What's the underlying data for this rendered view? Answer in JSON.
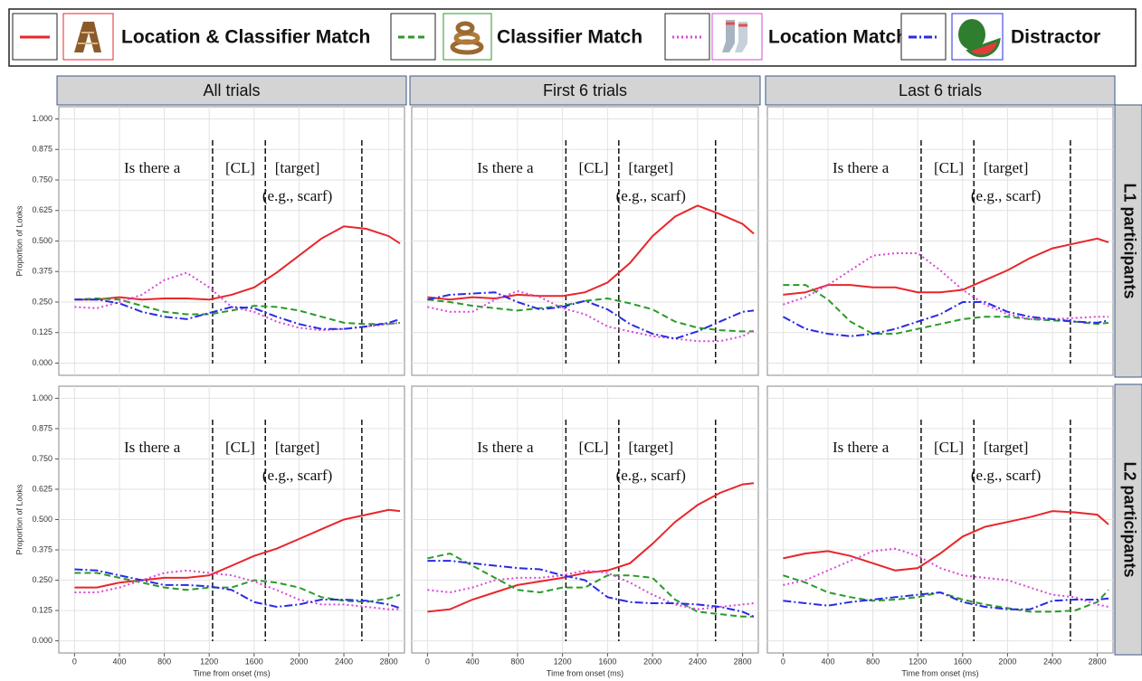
{
  "column_titles": [
    "All trials",
    "First 6 trials",
    "Last 6 trials"
  ],
  "row_titles": [
    "L1 participants",
    "L2 participants"
  ],
  "chart_data": [
    {
      "type": "line",
      "grid": true,
      "ylabel": "Proportion of Looks",
      "ytick_labels": true,
      "xtick_labels": false,
      "x": [
        0,
        200,
        400,
        600,
        800,
        1000,
        1200,
        1400,
        1600,
        1800,
        2000,
        2200,
        2400,
        2600,
        2800,
        2900
      ],
      "xlim": [
        -140,
        2940
      ],
      "xticks": [
        0,
        400,
        800,
        1200,
        1600,
        2000,
        2400,
        2800
      ],
      "ylim": [
        -0.05,
        1.05
      ],
      "yticks": [
        {
          "value": 0,
          "label": "0.000"
        },
        0.125,
        {
          "value": 0.25,
          "label": "0.250"
        },
        0.375,
        {
          "value": 0.5,
          "label": "0.500"
        },
        0.625,
        {
          "value": 0.75,
          "label": "0.750"
        },
        0.875,
        {
          "value": 1,
          "label": "1.000"
        }
      ],
      "vlines": [
        1230,
        1700,
        2560
      ],
      "annotations": [
        "Is there a",
        "[CL]",
        "[target]",
        "(e.g., scarf)"
      ],
      "series": [
        {
          "name": "Location & Classifier Match",
          "color": "#e8262a",
          "style": "solid",
          "values": [
            0.26,
            0.26,
            0.27,
            0.26,
            0.265,
            0.265,
            0.26,
            0.28,
            0.31,
            0.37,
            0.44,
            0.51,
            0.56,
            0.55,
            0.52,
            0.49
          ]
        },
        {
          "name": "Classifier Match",
          "color": "#2a9a2a",
          "style": "dashed",
          "values": [
            0.26,
            0.265,
            0.26,
            0.235,
            0.21,
            0.2,
            0.2,
            0.215,
            0.235,
            0.23,
            0.215,
            0.19,
            0.165,
            0.16,
            0.16,
            0.165
          ]
        },
        {
          "name": "Location Match",
          "color": "#d946d9",
          "style": "dotted",
          "values": [
            0.23,
            0.225,
            0.25,
            0.28,
            0.34,
            0.37,
            0.31,
            0.23,
            0.21,
            0.17,
            0.145,
            0.135,
            0.14,
            0.15,
            0.16,
            0.165
          ]
        },
        {
          "name": "Distractor",
          "color": "#2a2ae6",
          "style": "dashdot",
          "values": [
            0.26,
            0.26,
            0.245,
            0.21,
            0.19,
            0.18,
            0.205,
            0.23,
            0.225,
            0.19,
            0.16,
            0.14,
            0.14,
            0.15,
            0.165,
            0.18
          ]
        }
      ]
    },
    {
      "type": "line",
      "grid": true,
      "ytick_labels": false,
      "xtick_labels": false,
      "x": [
        0,
        200,
        400,
        600,
        800,
        1000,
        1200,
        1400,
        1600,
        1800,
        2000,
        2200,
        2400,
        2600,
        2800,
        2900
      ],
      "xlim": [
        -140,
        2940
      ],
      "xticks": [
        0,
        400,
        800,
        1200,
        1600,
        2000,
        2400,
        2800
      ],
      "ylim": [
        -0.05,
        1.05
      ],
      "yticks": [
        {
          "value": 0,
          "label": "0.000"
        },
        0.125,
        {
          "value": 0.25,
          "label": "0.250"
        },
        0.375,
        {
          "value": 0.5,
          "label": "0.500"
        },
        0.625,
        {
          "value": 0.75,
          "label": "0.750"
        },
        0.875,
        {
          "value": 1,
          "label": "1.000"
        }
      ],
      "vlines": [
        1230,
        1700,
        2560
      ],
      "annotations": [
        "Is there a",
        "[CL]",
        "[target]",
        "(e.g., scarf)"
      ],
      "series": [
        {
          "name": "Location & Classifier Match",
          "color": "#e8262a",
          "style": "solid",
          "values": [
            0.27,
            0.26,
            0.27,
            0.265,
            0.28,
            0.275,
            0.275,
            0.29,
            0.33,
            0.41,
            0.52,
            0.6,
            0.645,
            0.61,
            0.57,
            0.53
          ]
        },
        {
          "name": "Classifier Match",
          "color": "#2a9a2a",
          "style": "dashed",
          "values": [
            0.26,
            0.25,
            0.235,
            0.225,
            0.215,
            0.225,
            0.235,
            0.255,
            0.265,
            0.245,
            0.22,
            0.17,
            0.145,
            0.135,
            0.13,
            0.13
          ]
        },
        {
          "name": "Location Match",
          "color": "#d946d9",
          "style": "dotted",
          "values": [
            0.23,
            0.21,
            0.21,
            0.26,
            0.295,
            0.27,
            0.225,
            0.2,
            0.15,
            0.13,
            0.11,
            0.1,
            0.09,
            0.09,
            0.11,
            0.135
          ]
        },
        {
          "name": "Distractor",
          "color": "#2a2ae6",
          "style": "dashdot",
          "values": [
            0.26,
            0.28,
            0.285,
            0.29,
            0.25,
            0.22,
            0.23,
            0.255,
            0.22,
            0.16,
            0.12,
            0.1,
            0.13,
            0.17,
            0.21,
            0.215
          ]
        }
      ]
    },
    {
      "type": "line",
      "grid": true,
      "ytick_labels": false,
      "xtick_labels": false,
      "x": [
        0,
        200,
        400,
        600,
        800,
        1000,
        1200,
        1400,
        1600,
        1800,
        2000,
        2200,
        2400,
        2600,
        2800,
        2900
      ],
      "xlim": [
        -140,
        2940
      ],
      "xticks": [
        0,
        400,
        800,
        1200,
        1600,
        2000,
        2400,
        2800
      ],
      "ylim": [
        -0.05,
        1.05
      ],
      "yticks": [
        {
          "value": 0,
          "label": "0.000"
        },
        0.125,
        {
          "value": 0.25,
          "label": "0.250"
        },
        0.375,
        {
          "value": 0.5,
          "label": "0.500"
        },
        0.625,
        {
          "value": 0.75,
          "label": "0.750"
        },
        0.875,
        {
          "value": 1,
          "label": "1.000"
        }
      ],
      "vlines": [
        1230,
        1700,
        2560
      ],
      "annotations": [
        "Is there a",
        "[CL]",
        "[target]",
        "(e.g., scarf)"
      ],
      "series": [
        {
          "name": "Location & Classifier Match",
          "color": "#e8262a",
          "style": "solid",
          "values": [
            0.28,
            0.29,
            0.32,
            0.32,
            0.31,
            0.31,
            0.29,
            0.29,
            0.3,
            0.34,
            0.38,
            0.43,
            0.47,
            0.49,
            0.51,
            0.495
          ]
        },
        {
          "name": "Classifier Match",
          "color": "#2a9a2a",
          "style": "dashed",
          "values": [
            0.32,
            0.32,
            0.26,
            0.17,
            0.12,
            0.12,
            0.14,
            0.16,
            0.18,
            0.19,
            0.19,
            0.18,
            0.175,
            0.17,
            0.16,
            0.165
          ]
        },
        {
          "name": "Location Match",
          "color": "#d946d9",
          "style": "dotted",
          "values": [
            0.24,
            0.27,
            0.32,
            0.38,
            0.44,
            0.45,
            0.45,
            0.38,
            0.3,
            0.24,
            0.2,
            0.18,
            0.18,
            0.185,
            0.19,
            0.19
          ]
        },
        {
          "name": "Distractor",
          "color": "#2a2ae6",
          "style": "dashdot",
          "values": [
            0.19,
            0.14,
            0.12,
            0.11,
            0.12,
            0.14,
            0.17,
            0.2,
            0.25,
            0.25,
            0.21,
            0.19,
            0.18,
            0.17,
            0.165,
            0.175
          ]
        }
      ]
    },
    {
      "type": "line",
      "grid": true,
      "ylabel": "Proportion of Looks",
      "xlabel": "Time from onset (ms)",
      "ytick_labels": true,
      "xtick_labels": true,
      "x": [
        0,
        200,
        400,
        600,
        800,
        1000,
        1200,
        1400,
        1600,
        1800,
        2000,
        2200,
        2400,
        2600,
        2800,
        2900
      ],
      "xlim": [
        -140,
        2940
      ],
      "xticks": [
        0,
        400,
        800,
        1200,
        1600,
        2000,
        2400,
        2800
      ],
      "ylim": [
        -0.05,
        1.05
      ],
      "yticks": [
        {
          "value": 0,
          "label": "0.000"
        },
        0.125,
        {
          "value": 0.25,
          "label": "0.250"
        },
        0.375,
        {
          "value": 0.5,
          "label": "0.500"
        },
        0.625,
        {
          "value": 0.75,
          "label": "0.750"
        },
        0.875,
        {
          "value": 1,
          "label": "1.000"
        }
      ],
      "vlines": [
        1230,
        1700,
        2560
      ],
      "annotations": [
        "Is there a",
        "[CL]",
        "[target]",
        "(e.g., scarf)"
      ],
      "series": [
        {
          "name": "Location & Classifier Match",
          "color": "#e8262a",
          "style": "solid",
          "values": [
            0.22,
            0.22,
            0.24,
            0.25,
            0.26,
            0.26,
            0.27,
            0.31,
            0.35,
            0.38,
            0.42,
            0.46,
            0.5,
            0.52,
            0.54,
            0.535
          ]
        },
        {
          "name": "Classifier Match",
          "color": "#2a9a2a",
          "style": "dashed",
          "values": [
            0.28,
            0.28,
            0.26,
            0.24,
            0.22,
            0.21,
            0.22,
            0.22,
            0.25,
            0.24,
            0.22,
            0.18,
            0.165,
            0.16,
            0.175,
            0.19
          ]
        },
        {
          "name": "Location Match",
          "color": "#d946d9",
          "style": "dotted",
          "values": [
            0.2,
            0.2,
            0.22,
            0.25,
            0.28,
            0.29,
            0.28,
            0.27,
            0.245,
            0.21,
            0.17,
            0.15,
            0.15,
            0.14,
            0.13,
            0.13
          ]
        },
        {
          "name": "Distractor",
          "color": "#2a2ae6",
          "style": "dashdot",
          "values": [
            0.295,
            0.29,
            0.27,
            0.25,
            0.23,
            0.23,
            0.225,
            0.21,
            0.16,
            0.14,
            0.15,
            0.17,
            0.17,
            0.165,
            0.15,
            0.135
          ]
        }
      ]
    },
    {
      "type": "line",
      "grid": true,
      "xlabel": "Time from onset (ms)",
      "ytick_labels": false,
      "xtick_labels": true,
      "x": [
        0,
        200,
        400,
        600,
        800,
        1000,
        1200,
        1400,
        1600,
        1800,
        2000,
        2200,
        2400,
        2600,
        2800,
        2900
      ],
      "xlim": [
        -140,
        2940
      ],
      "xticks": [
        0,
        400,
        800,
        1200,
        1600,
        2000,
        2400,
        2800
      ],
      "ylim": [
        -0.05,
        1.05
      ],
      "yticks": [
        {
          "value": 0,
          "label": "0.000"
        },
        0.125,
        {
          "value": 0.25,
          "label": "0.250"
        },
        0.375,
        {
          "value": 0.5,
          "label": "0.500"
        },
        0.625,
        {
          "value": 0.75,
          "label": "0.750"
        },
        0.875,
        {
          "value": 1,
          "label": "1.000"
        }
      ],
      "vlines": [
        1230,
        1700,
        2560
      ],
      "annotations": [
        "Is there a",
        "[CL]",
        "[target]",
        "(e.g., scarf)"
      ],
      "series": [
        {
          "name": "Location & Classifier Match",
          "color": "#e8262a",
          "style": "solid",
          "values": [
            0.12,
            0.13,
            0.17,
            0.2,
            0.23,
            0.245,
            0.26,
            0.28,
            0.29,
            0.32,
            0.4,
            0.49,
            0.56,
            0.61,
            0.645,
            0.65
          ]
        },
        {
          "name": "Classifier Match",
          "color": "#2a9a2a",
          "style": "dashed",
          "values": [
            0.34,
            0.36,
            0.31,
            0.26,
            0.21,
            0.2,
            0.22,
            0.22,
            0.27,
            0.27,
            0.26,
            0.17,
            0.12,
            0.11,
            0.1,
            0.1
          ]
        },
        {
          "name": "Location Match",
          "color": "#d946d9",
          "style": "dotted",
          "values": [
            0.21,
            0.2,
            0.22,
            0.25,
            0.26,
            0.26,
            0.27,
            0.29,
            0.28,
            0.24,
            0.19,
            0.15,
            0.13,
            0.14,
            0.15,
            0.155
          ]
        },
        {
          "name": "Distractor",
          "color": "#2a2ae6",
          "style": "dashdot",
          "values": [
            0.33,
            0.33,
            0.32,
            0.31,
            0.3,
            0.295,
            0.27,
            0.25,
            0.18,
            0.16,
            0.155,
            0.155,
            0.15,
            0.14,
            0.12,
            0.1
          ]
        }
      ]
    },
    {
      "type": "line",
      "grid": true,
      "xlabel": "Time from onset (ms)",
      "ytick_labels": false,
      "xtick_labels": true,
      "x": [
        0,
        200,
        400,
        600,
        800,
        1000,
        1200,
        1400,
        1600,
        1800,
        2000,
        2200,
        2400,
        2600,
        2800,
        2900
      ],
      "xlim": [
        -140,
        2940
      ],
      "xticks": [
        0,
        400,
        800,
        1200,
        1600,
        2000,
        2400,
        2800
      ],
      "ylim": [
        -0.05,
        1.05
      ],
      "yticks": [
        {
          "value": 0,
          "label": "0.000"
        },
        0.125,
        {
          "value": 0.25,
          "label": "0.250"
        },
        0.375,
        {
          "value": 0.5,
          "label": "0.500"
        },
        0.625,
        {
          "value": 0.75,
          "label": "0.750"
        },
        0.875,
        {
          "value": 1,
          "label": "1.000"
        }
      ],
      "vlines": [
        1230,
        1700,
        2560
      ],
      "annotations": [
        "Is there a",
        "[CL]",
        "[target]",
        "(e.g., scarf)"
      ],
      "series": [
        {
          "name": "Location & Classifier Match",
          "color": "#e8262a",
          "style": "solid",
          "values": [
            0.34,
            0.36,
            0.37,
            0.35,
            0.32,
            0.29,
            0.3,
            0.36,
            0.43,
            0.47,
            0.49,
            0.51,
            0.535,
            0.53,
            0.52,
            0.48
          ]
        },
        {
          "name": "Classifier Match",
          "color": "#2a9a2a",
          "style": "dashed",
          "values": [
            0.27,
            0.24,
            0.2,
            0.18,
            0.165,
            0.17,
            0.18,
            0.2,
            0.17,
            0.15,
            0.135,
            0.12,
            0.12,
            0.125,
            0.16,
            0.21
          ]
        },
        {
          "name": "Location Match",
          "color": "#d946d9",
          "style": "dotted",
          "values": [
            0.23,
            0.25,
            0.29,
            0.33,
            0.37,
            0.38,
            0.35,
            0.3,
            0.27,
            0.26,
            0.25,
            0.22,
            0.19,
            0.18,
            0.15,
            0.14
          ]
        },
        {
          "name": "Distractor",
          "color": "#2a2ae6",
          "style": "dashdot",
          "values": [
            0.165,
            0.155,
            0.145,
            0.16,
            0.17,
            0.18,
            0.19,
            0.2,
            0.16,
            0.14,
            0.13,
            0.13,
            0.165,
            0.17,
            0.17,
            0.175
          ]
        }
      ]
    }
  ]
}
